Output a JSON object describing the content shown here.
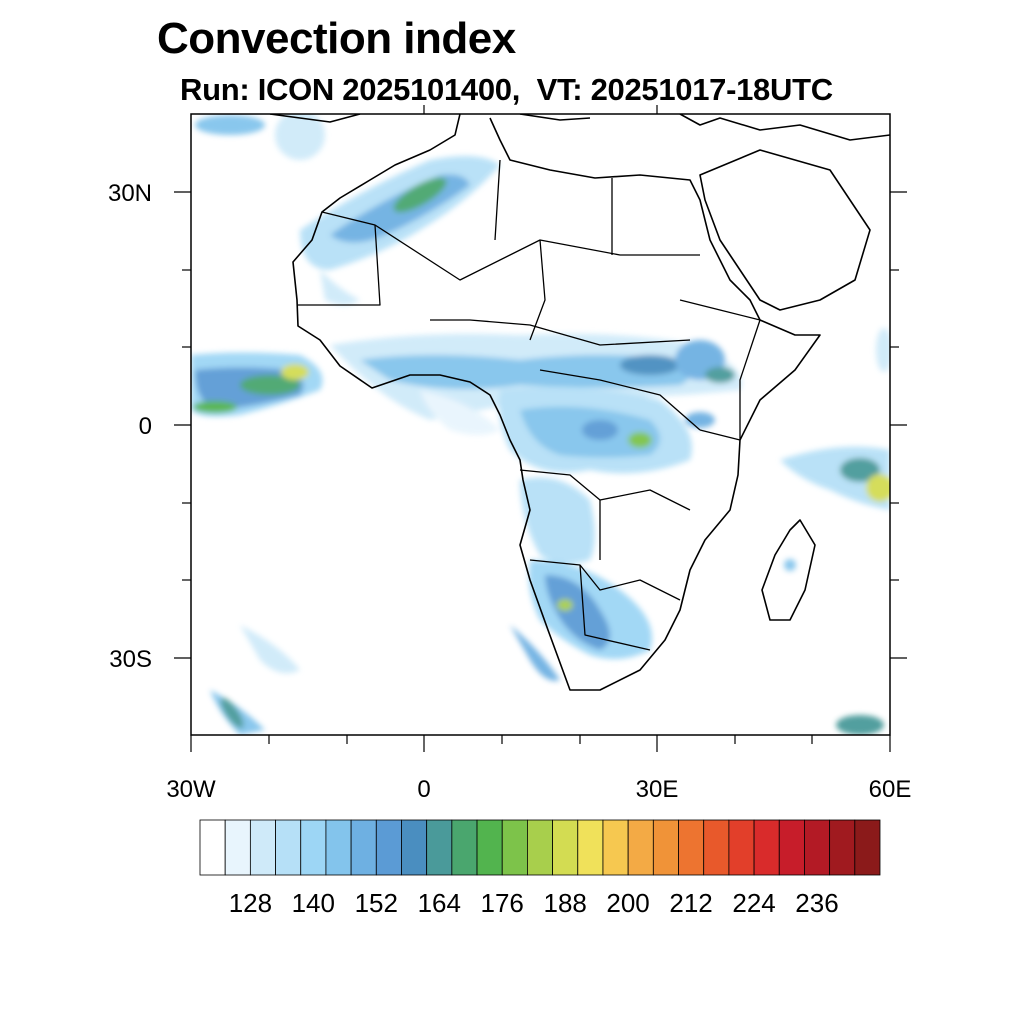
{
  "title": "Convection index",
  "subtitle": "Run: ICON 2025101400,  VT: 20251017-18UTC",
  "map": {
    "lon_range": [
      -30,
      60
    ],
    "lat_range": [
      -40,
      40
    ],
    "lat_labels": [
      {
        "lat": 30,
        "text": "30N"
      },
      {
        "lat": 0,
        "text": "0"
      },
      {
        "lat": -30,
        "text": "30S"
      }
    ],
    "lon_labels": [
      {
        "lon": -30,
        "text": "30W"
      },
      {
        "lon": 0,
        "text": "0"
      },
      {
        "lon": 30,
        "text": "30E"
      },
      {
        "lon": 60,
        "text": "60E"
      }
    ]
  },
  "colorbar": {
    "colors": [
      "#ffffff",
      "#e8f5fd",
      "#cfeaf9",
      "#b6e0f7",
      "#9dd6f5",
      "#83c4ec",
      "#6eb0e2",
      "#5b9bd5",
      "#4a8ec0",
      "#4a9a9a",
      "#4aa66e",
      "#52b44e",
      "#7dc34a",
      "#a8cf4c",
      "#d3dc52",
      "#f0e15a",
      "#f6c850",
      "#f3aa45",
      "#f09338",
      "#ed7430",
      "#e8592b",
      "#e23f2a",
      "#d92b2b",
      "#c71d2a",
      "#b31a25",
      "#a01a1f",
      "#8b1a1a"
    ],
    "labels": [
      "128",
      "140",
      "152",
      "164",
      "176",
      "188",
      "200",
      "212",
      "224",
      "236"
    ]
  }
}
